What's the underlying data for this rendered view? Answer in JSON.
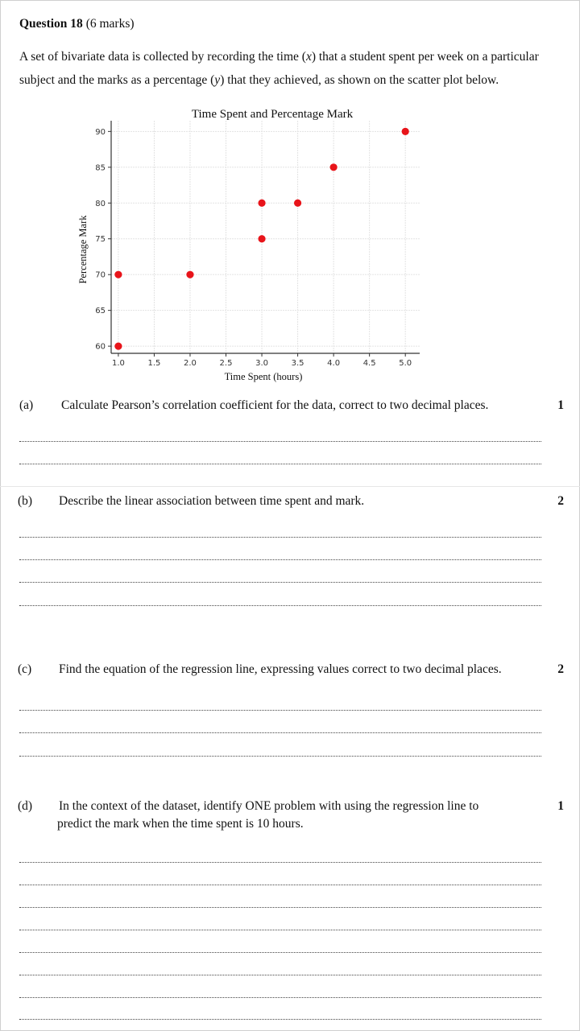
{
  "question": {
    "number_label": "Question 18",
    "marks_label": "(6 marks)",
    "intro_a": "A set of bivariate data is collected by recording the time (",
    "intro_x": "x",
    "intro_b": ") that a student spent per week on a particular subject and  the marks as a percentage (",
    "intro_y": "y",
    "intro_c": ") that they achieved, as shown on the scatter plot below."
  },
  "chart_data": {
    "type": "scatter",
    "title": "Time Spent and Percentage Mark",
    "xlabel": "Time Spent (hours)",
    "ylabel": "Percentage Mark",
    "xlim": [
      0.9,
      5.2
    ],
    "ylim": [
      59,
      91.5
    ],
    "xticks": [
      "1.0",
      "1.5",
      "2.0",
      "2.5",
      "3.0",
      "3.5",
      "4.0",
      "4.5",
      "5.0"
    ],
    "yticks": [
      "60",
      "65",
      "70",
      "75",
      "80",
      "85",
      "90"
    ],
    "grid": true,
    "point_color": "#e8141a",
    "points": [
      {
        "x": 1.0,
        "y": 60
      },
      {
        "x": 1.0,
        "y": 70
      },
      {
        "x": 2.0,
        "y": 70
      },
      {
        "x": 3.0,
        "y": 75
      },
      {
        "x": 3.0,
        "y": 80
      },
      {
        "x": 3.5,
        "y": 80
      },
      {
        "x": 4.0,
        "y": 85
      },
      {
        "x": 5.0,
        "y": 90
      }
    ]
  },
  "parts": [
    {
      "label": "(a)",
      "text": "Calculate Pearson’s correlation coefficient for the data, correct to two decimal places.",
      "text2": "",
      "marks": "1"
    },
    {
      "label": "(b)",
      "text": "Describe the linear association between time spent and mark.",
      "text2": "",
      "marks": "2"
    },
    {
      "label": "(c)",
      "text": "Find the equation of the regression line, expressing values correct to two decimal places.",
      "text2": "",
      "marks": "2"
    },
    {
      "label": "(d)",
      "text": "In the context of the dataset, identify ONE problem with using the regression line to",
      "text2": "predict the mark when the time spent is 10 hours.",
      "marks": "1"
    }
  ]
}
